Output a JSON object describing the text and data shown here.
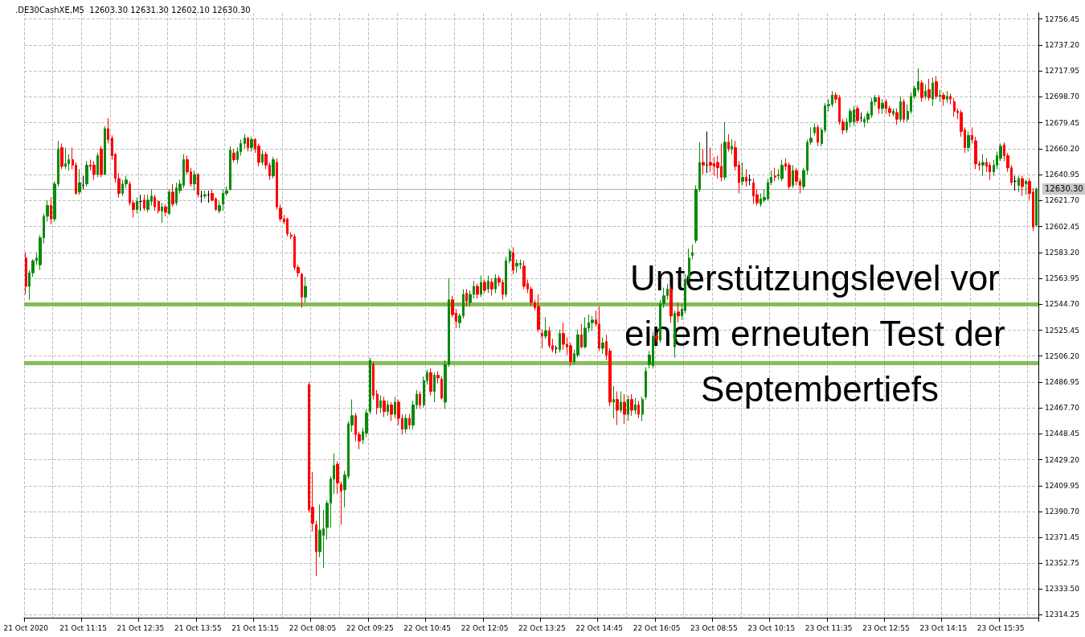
{
  "chart_data": {
    "type": "candlestick",
    "title": ".DE30CashXE,M5  12603.30 12631.30 12602.10 12630.30",
    "annotations": [
      "Unterstützungslevel vor einem erneuten Test der Septembertiefs"
    ],
    "colors": [
      "#ff0000",
      "#0a8a0a",
      "#0a8a0a",
      "#0a8a0a",
      "#0a8a0a",
      "#0a8a0a",
      "#0a8a0a",
      "#ff0000",
      "#0a8a0a",
      "#0a8a0a",
      "#ff0000",
      "#0a8a0a",
      "#0a8a0a",
      "#ff0000",
      "#ff0000",
      "#0a8a0a",
      "#000000",
      "#0a8a0a",
      "#ff0000",
      "#ff0000",
      "#0a8a0a",
      "#ff0000",
      "#0a8a0a",
      "#ff0000",
      "#ff0000",
      "#ff0000",
      "#ff0000",
      "#0a8a0a",
      "#0a8a0a",
      "#ff0000",
      "#ff0000",
      "#0a8a0a",
      "#000000",
      "#ff0000",
      "#0a8a0a",
      "#0a8a0a",
      "#ff0000",
      "#ff0000",
      "#0a8a0a",
      "#ff0000",
      "#0a8a0a",
      "#ff0000",
      "#0a8a0a",
      "#0a8a0a",
      "#0a8a0a",
      "#ff0000",
      "#ff0000",
      "#0a8a0a",
      "#ff0000",
      "#000000",
      "#0a8a0a",
      "#000000",
      "#ff0000",
      "#ff0000",
      "#0a8a0a",
      "#0a8a0a",
      "#0a8a0a",
      "#0a8a0a",
      "#ff0000",
      "#0a8a0a",
      "#0a8a0a",
      "#0a8a0a",
      "#ff0000",
      "#0a8a0a",
      "#ff0000",
      "#ff0000",
      "#0a8a0a",
      "#ff0000",
      "#ff0000",
      "#0a8a0a",
      "#ff0000",
      "#ff0000",
      "#ff0000",
      "#ff0000",
      "#ff0000",
      "#ff0000",
      "#ff0000",
      "#ff0000",
      "#0a8a0a",
      "#ff0000",
      "#ff0000",
      "#ff0000",
      "#0a8a0a",
      "#0a8a0a",
      "#0a8a0a",
      "#0a8a0a",
      "#0a8a0a",
      "#ff0000",
      "#ff0000",
      "#0a8a0a",
      "#0a8a0a",
      "#0a8a0a",
      "#ff0000",
      "#ff0000",
      "#0a8a0a",
      "#0a8a0a",
      "#0a8a0a",
      "#ff0000",
      "#ff0000",
      "#0a8a0a",
      "#ff0000",
      "#0a8a0a",
      "#ff0000",
      "#0a8a0a",
      "#ff0000",
      "#ff0000",
      "#0a8a0a",
      "#ff0000",
      "#0a8a0a",
      "#0a8a0a",
      "#ff0000",
      "#0a8a0a",
      "#0a8a0a",
      "#ff0000",
      "#0a8a0a",
      "#ff0000",
      "#ff0000",
      "#0a8a0a",
      "#0a8a0a",
      "#ff0000",
      "#ff0000",
      "#0a8a0a",
      "#0a8a0a",
      "#ff0000",
      "#0a8a0a",
      "#0a8a0a",
      "#ff0000",
      "#0a8a0a",
      "#ff0000",
      "#0a8a0a",
      "#ff0000",
      "#0a8a0a",
      "#ff0000",
      "#ff0000",
      "#0a8a0a",
      "#0a8a0a",
      "#ff0000",
      "#0a8a0a",
      "#0a8a0a",
      "#ff0000",
      "#ff0000",
      "#ff0000",
      "#ff0000",
      "#ff0000",
      "#ff0000",
      "#0a8a0a",
      "#ff0000",
      "#ff0000",
      "#000000",
      "#0a8a0a",
      "#ff0000",
      "#ff0000",
      "#ff0000",
      "#0a8a0a",
      "#0a8a0a",
      "#ff0000",
      "#0a8a0a",
      "#0a8a0a",
      "#0a8a0a",
      "#ff0000",
      "#ff0000",
      "#0a8a0a",
      "#ff0000",
      "#ff0000",
      "#0a8a0a",
      "#ff0000",
      "#0a8a0a",
      "#ff0000",
      "#0a8a0a",
      "#ff0000",
      "#0a8a0a",
      "#ff0000",
      "#0a8a0a",
      "#0a8a0a",
      "#0a8a0a",
      "#0a8a0a",
      "#ff0000",
      "#0a8a0a",
      "#0a8a0a",
      "#0a8a0a",
      "#ff0000",
      "#0a8a0a",
      "#ff0000",
      "#0a8a0a",
      "#0a8a0a",
      "#0a8a0a",
      "#0a8a0a",
      "#0a8a0a",
      "#0a8a0a",
      "#ff0000",
      "#000000",
      "#ff0000",
      "#ff0000",
      "#ff0000",
      "#ff0000",
      "#0a8a0a",
      "#ff0000",
      "#0a8a0a",
      "#ff0000",
      "#ff0000",
      "#0a8a0a",
      "#ff0000",
      "#000000",
      "#ff0000",
      "#ff0000",
      "#0a8a0a",
      "#0a8a0a",
      "#0a8a0a",
      "#0a8a0a",
      "#ff0000",
      "#0a8a0a",
      "#0a8a0a",
      "#ff0000",
      "#ff0000",
      "#0a8a0a",
      "#ff0000",
      "#ff0000",
      "#0a8a0a",
      "#0a8a0a",
      "#0a8a0a",
      "#0a8a0a",
      "#ff0000",
      "#0a8a0a",
      "#0a8a0a",
      "#0a8a0a",
      "#0a8a0a",
      "#ff0000",
      "#ff0000",
      "#ff0000",
      "#0a8a0a",
      "#0a8a0a",
      "#0a8a0a",
      "#ff0000",
      "#000000",
      "#0a8a0a",
      "#0a8a0a",
      "#0a8a0a",
      "#0a8a0a",
      "#ff0000",
      "#0a8a0a",
      "#ff0000",
      "#ff0000",
      "#0a8a0a",
      "#ff0000",
      "#0a8a0a",
      "#ff0000",
      "#0a8a0a",
      "#0a8a0a",
      "#0a8a0a",
      "#0a8a0a",
      "#ff0000",
      "#0a8a0a",
      "#ff0000",
      "#0a8a0a",
      "#ff0000",
      "#0a8a0a",
      "#ff0000",
      "#0a8a0a",
      "#ff0000",
      "#ff0000",
      "#ff0000",
      "#ff0000",
      "#ff0000",
      "#0a8a0a",
      "#ff0000",
      "#ff0000",
      "#ff0000",
      "#0a8a0a",
      "#ff0000",
      "#ff0000",
      "#0a8a0a",
      "#0a8a0a",
      "#0a8a0a",
      "#ff0000",
      "#ff0000",
      "#ff0000",
      "#000000",
      "#0a8a0a",
      "#ff0000",
      "#0a8a0a",
      "#ff0000",
      "#ff0000",
      "#0a8a0a"
    ],
    "grid": true,
    "ylim": [
      12312,
      12761
    ],
    "yticks": [
      {
        "value": 12756.45,
        "label": "12756.45"
      },
      {
        "value": 12737.2,
        "label": "12737.20"
      },
      {
        "value": 12717.95,
        "label": "12717.95"
      },
      {
        "value": 12698.7,
        "label": "12698.70"
      },
      {
        "value": 12679.45,
        "label": "12679.45"
      },
      {
        "value": 12660.2,
        "label": "12660.20"
      },
      {
        "value": 12640.95,
        "label": "12640.95"
      },
      {
        "value": 12621.7,
        "label": "12621.70"
      },
      {
        "value": 12602.45,
        "label": "12602.45"
      },
      {
        "value": 12583.2,
        "label": "12583.20"
      },
      {
        "value": 12563.95,
        "label": "12563.95"
      },
      {
        "value": 12544.7,
        "label": "12544.70"
      },
      {
        "value": 12525.45,
        "label": "12525.45"
      },
      {
        "value": 12506.2,
        "label": "12506.20"
      },
      {
        "value": 12486.95,
        "label": "12486.95"
      },
      {
        "value": 12467.7,
        "label": "12467.70"
      },
      {
        "value": 12448.45,
        "label": "12448.45"
      },
      {
        "value": 12429.2,
        "label": "12429.20"
      },
      {
        "value": 12409.95,
        "label": "12409.95"
      },
      {
        "value": 12390.7,
        "label": "12390.70"
      },
      {
        "value": 12371.45,
        "label": "12371.45"
      },
      {
        "value": 12352.75,
        "label": "12352.75"
      },
      {
        "value": 12333.5,
        "label": "12333.50"
      },
      {
        "value": 12314.25,
        "label": "12314.25"
      }
    ],
    "ref_lines": [
      {
        "axis": "y",
        "value": 12630.3,
        "label": "12630.30",
        "color": "#b4b4b4"
      },
      {
        "axis": "y",
        "value": 12545,
        "color": "#7ab648"
      },
      {
        "axis": "y",
        "value": 12501,
        "color": "#7ab648"
      }
    ],
    "categories": [
      "21 Oct 2020",
      null,
      null,
      null,
      null,
      null,
      null,
      null,
      null,
      null,
      null,
      null,
      null,
      null,
      null,
      null,
      "21 Oct 11:15",
      null,
      null,
      null,
      null,
      null,
      null,
      null,
      null,
      null,
      null,
      null,
      null,
      null,
      null,
      null,
      "21 Oct 12:35",
      null,
      null,
      null,
      null,
      null,
      null,
      null,
      null,
      null,
      null,
      null,
      null,
      null,
      null,
      null,
      "21 Oct 13:55",
      null,
      null,
      null,
      null,
      null,
      null,
      null,
      null,
      null,
      null,
      null,
      null,
      null,
      null,
      null,
      "21 Oct 15:15",
      null,
      null,
      null,
      null,
      null,
      null,
      null,
      null,
      null,
      null,
      null,
      null,
      null,
      null,
      null,
      "22 Oct 08:05",
      null,
      null,
      null,
      null,
      null,
      null,
      null,
      null,
      null,
      null,
      null,
      null,
      null,
      null,
      null,
      "22 Oct 09:25",
      null,
      null,
      null,
      null,
      null,
      null,
      null,
      null,
      null,
      null,
      null,
      null,
      null,
      null,
      null,
      "22 Oct 10:45",
      null,
      null,
      null,
      null,
      null,
      null,
      null,
      null,
      null,
      null,
      null,
      null,
      null,
      null,
      null,
      "22 Oct 12:05",
      null,
      null,
      null,
      null,
      null,
      null,
      null,
      null,
      null,
      null,
      null,
      null,
      null,
      null,
      null,
      "22 Oct 13:25",
      null,
      null,
      null,
      null,
      null,
      null,
      null,
      null,
      null,
      null,
      null,
      null,
      null,
      null,
      null,
      "22 Oct 14:45",
      null,
      null,
      null,
      null,
      null,
      null,
      null,
      null,
      null,
      null,
      null,
      null,
      null,
      null,
      null,
      "22 Oct 16:05",
      null,
      null,
      null,
      null,
      null,
      null,
      null,
      null,
      null,
      null,
      null,
      null,
      null,
      null,
      null,
      "23 Oct 08:55",
      null,
      null,
      null,
      null,
      null,
      null,
      null,
      null,
      null,
      null,
      null,
      null,
      null,
      null,
      null,
      "23 Oct 10:15",
      null,
      null,
      null,
      null,
      null,
      null,
      null,
      null,
      null,
      null,
      null,
      null,
      null,
      null,
      null,
      "23 Oct 11:35",
      null,
      null,
      null,
      null,
      null,
      null,
      null,
      null,
      null,
      null,
      null,
      null,
      null,
      null,
      null,
      "23 Oct 12:55",
      null,
      null,
      null,
      null,
      null,
      null,
      null,
      null,
      null,
      null,
      null,
      null,
      null,
      null,
      null,
      "23 Oct 14:15",
      null,
      null,
      null,
      null,
      null,
      null,
      null,
      null,
      null,
      null,
      null,
      null,
      null,
      null,
      null,
      "23 Oct 15:35",
      null,
      null,
      null,
      null,
      null,
      null,
      null,
      null,
      null,
      null
    ],
    "ohlc": [
      [
        12579,
        12583,
        12552,
        12558
      ],
      [
        12558,
        12570,
        12548,
        12568
      ],
      [
        12568,
        12578,
        12565,
        12577
      ],
      [
        12577,
        12583,
        12574,
        12579
      ],
      [
        12574,
        12596,
        12570,
        12594
      ],
      [
        12594,
        12612,
        12590,
        12610
      ],
      [
        12610,
        12622,
        12606,
        12618
      ],
      [
        12618,
        12624,
        12604,
        12608
      ],
      [
        12608,
        12636,
        12606,
        12634
      ],
      [
        12634,
        12666,
        12632,
        12660
      ],
      [
        12661,
        12664,
        12645,
        12647
      ],
      [
        12647,
        12661,
        12645,
        12649
      ],
      [
        12649,
        12656,
        12644,
        12652
      ],
      [
        12652,
        12661,
        12645,
        12648
      ],
      [
        12648,
        12650,
        12626,
        12627
      ],
      [
        12628,
        12645,
        12626,
        12635
      ],
      [
        12633,
        12640,
        12630,
        12633
      ],
      [
        12634,
        12651,
        12632,
        12648
      ],
      [
        12648,
        12652,
        12644,
        12647
      ],
      [
        12648,
        12651,
        12637,
        12641
      ],
      [
        12641,
        12657,
        12639,
        12655
      ],
      [
        12660,
        12662,
        12639,
        12641
      ],
      [
        12641,
        12677,
        12641,
        12675
      ],
      [
        12675,
        12683,
        12664,
        12667
      ],
      [
        12668,
        12670,
        12652,
        12655
      ],
      [
        12656,
        12657,
        12635,
        12638
      ],
      [
        12638,
        12642,
        12624,
        12627
      ],
      [
        12627,
        12637,
        12625,
        12634
      ],
      [
        12634,
        12640,
        12631,
        12637
      ],
      [
        12634,
        12636,
        12618,
        12620
      ],
      [
        12620,
        12622,
        12609,
        12615
      ],
      [
        12615,
        12624,
        12612,
        12621
      ],
      [
        12621,
        12626,
        12614,
        12621
      ],
      [
        12622,
        12626,
        12614,
        12616
      ],
      [
        12615,
        12626,
        12613,
        12622
      ],
      [
        12621,
        12630,
        12618,
        12625
      ],
      [
        12624,
        12626,
        12614,
        12617
      ],
      [
        12621,
        12622,
        12612,
        12614
      ],
      [
        12614,
        12620,
        12605,
        12617
      ],
      [
        12617,
        12619,
        12610,
        12613
      ],
      [
        12612,
        12630,
        12611,
        12628
      ],
      [
        12628,
        12634,
        12617,
        12619
      ],
      [
        12620,
        12635,
        12618,
        12631
      ],
      [
        12629,
        12637,
        12627,
        12634
      ],
      [
        12633,
        12656,
        12631,
        12652
      ],
      [
        12652,
        12655,
        12641,
        12643
      ],
      [
        12643,
        12646,
        12632,
        12634
      ],
      [
        12634,
        12644,
        12629,
        12641
      ],
      [
        12641,
        12642,
        12624,
        12626
      ],
      [
        12625,
        12629,
        12620,
        12625
      ],
      [
        12625,
        12629,
        12623,
        12626
      ],
      [
        12626,
        12629,
        12620,
        12626
      ],
      [
        12627,
        12630,
        12621,
        12622
      ],
      [
        12623,
        12624,
        12614,
        12615
      ],
      [
        12614,
        12621,
        12612,
        12618
      ],
      [
        12619,
        12630,
        12614,
        12627
      ],
      [
        12627,
        12632,
        12625,
        12629
      ],
      [
        12630,
        12662,
        12629,
        12659
      ],
      [
        12657,
        12660,
        12650,
        12652
      ],
      [
        12652,
        12661,
        12649,
        12658
      ],
      [
        12658,
        12667,
        12655,
        12664
      ],
      [
        12664,
        12671,
        12660,
        12668
      ],
      [
        12668,
        12669,
        12658,
        12661
      ],
      [
        12661,
        12669,
        12658,
        12667
      ],
      [
        12667,
        12668,
        12657,
        12660
      ],
      [
        12662,
        12664,
        12647,
        12650
      ],
      [
        12650,
        12659,
        12648,
        12656
      ],
      [
        12656,
        12658,
        12645,
        12648
      ],
      [
        12648,
        12650,
        12637,
        12640
      ],
      [
        12640,
        12654,
        12638,
        12652
      ],
      [
        12650,
        12653,
        12615,
        12617
      ],
      [
        12616,
        12619,
        12606,
        12608
      ],
      [
        12608,
        12611,
        12604,
        12606
      ],
      [
        12608,
        12609,
        12595,
        12597
      ],
      [
        12596,
        12598,
        12593,
        12595
      ],
      [
        12595,
        12597,
        12570,
        12572
      ],
      [
        12572,
        12574,
        12565,
        12568
      ],
      [
        12567,
        12568,
        12542,
        12550
      ],
      [
        12550,
        12565,
        12546,
        12558
      ],
      [
        12485,
        12487,
        12390,
        12392
      ],
      [
        12394,
        12420,
        12376,
        12382
      ],
      [
        12381,
        12384,
        12343,
        12361
      ],
      [
        12361,
        12396,
        12357,
        12377
      ],
      [
        12373,
        12392,
        12349,
        12378
      ],
      [
        12379,
        12399,
        12370,
        12397
      ],
      [
        12397,
        12417,
        12379,
        12415
      ],
      [
        12415,
        12434,
        12404,
        12425
      ],
      [
        12426,
        12428,
        12404,
        12412
      ],
      [
        12411,
        12413,
        12381,
        12406
      ],
      [
        12407,
        12421,
        12394,
        12418
      ],
      [
        12417,
        12458,
        12415,
        12456
      ],
      [
        12455,
        12474,
        12450,
        12462
      ],
      [
        12462,
        12464,
        12443,
        12448
      ],
      [
        12448,
        12450,
        12437,
        12443
      ],
      [
        12444,
        12453,
        12441,
        12450
      ],
      [
        12449,
        12467,
        12446,
        12464
      ],
      [
        12465,
        12505,
        12463,
        12503
      ],
      [
        12500,
        12502,
        12474,
        12477
      ],
      [
        12478,
        12481,
        12463,
        12468
      ],
      [
        12468,
        12477,
        12464,
        12473
      ],
      [
        12473,
        12476,
        12461,
        12465
      ],
      [
        12465,
        12473,
        12462,
        12470
      ],
      [
        12470,
        12472,
        12458,
        12463
      ],
      [
        12463,
        12476,
        12460,
        12472
      ],
      [
        12472,
        12474,
        12455,
        12460
      ],
      [
        12460,
        12463,
        12448,
        12452
      ],
      [
        12452,
        12463,
        12449,
        12460
      ],
      [
        12460,
        12463,
        12452,
        12455
      ],
      [
        12455,
        12473,
        12452,
        12470
      ],
      [
        12470,
        12481,
        12467,
        12478
      ],
      [
        12478,
        12480,
        12467,
        12470
      ],
      [
        12470,
        12491,
        12468,
        12488
      ],
      [
        12488,
        12496,
        12485,
        12494
      ],
      [
        12494,
        12497,
        12477,
        12480
      ],
      [
        12480,
        12494,
        12472,
        12492
      ],
      [
        12492,
        12495,
        12486,
        12490
      ],
      [
        12489,
        12491,
        12474,
        12475
      ],
      [
        12472,
        12503,
        12467,
        12500
      ],
      [
        12500,
        12564,
        12498,
        12548
      ],
      [
        12548,
        12551,
        12535,
        12537
      ],
      [
        12538,
        12541,
        12527,
        12532
      ],
      [
        12531,
        12538,
        12527,
        12536
      ],
      [
        12536,
        12556,
        12534,
        12552
      ],
      [
        12553,
        12556,
        12543,
        12547
      ],
      [
        12546,
        12555,
        12543,
        12552
      ],
      [
        12552,
        12562,
        12549,
        12558
      ],
      [
        12558,
        12560,
        12549,
        12552
      ],
      [
        12552,
        12566,
        12550,
        12561
      ],
      [
        12561,
        12563,
        12553,
        12555
      ],
      [
        12556,
        12566,
        12553,
        12562
      ],
      [
        12561,
        12564,
        12551,
        12556
      ],
      [
        12556,
        12567,
        12553,
        12564
      ],
      [
        12564,
        12566,
        12558,
        12561
      ],
      [
        12561,
        12563,
        12548,
        12552
      ],
      [
        12552,
        12580,
        12550,
        12577
      ],
      [
        12577,
        12586,
        12575,
        12584
      ],
      [
        12583,
        12587,
        12567,
        12570
      ],
      [
        12573,
        12578,
        12568,
        12575
      ],
      [
        12574,
        12578,
        12571,
        12575
      ],
      [
        12573,
        12577,
        12556,
        12558
      ],
      [
        12560,
        12563,
        12553,
        12556
      ],
      [
        12556,
        12558,
        12543,
        12546
      ],
      [
        12546,
        12548,
        12540,
        12542
      ],
      [
        12543,
        12552,
        12524,
        12526
      ],
      [
        12523,
        12526,
        12512,
        12521
      ],
      [
        12521,
        12535,
        12519,
        12525
      ],
      [
        12525,
        12528,
        12512,
        12514
      ],
      [
        12514,
        12519,
        12509,
        12511
      ],
      [
        12512,
        12514,
        12508,
        12512
      ],
      [
        12511,
        12526,
        12509,
        12523
      ],
      [
        12523,
        12531,
        12511,
        12515
      ],
      [
        12515,
        12520,
        12507,
        12513
      ],
      [
        12514,
        12516,
        12499,
        12502
      ],
      [
        12502,
        12511,
        12500,
        12508
      ],
      [
        12507,
        12526,
        12505,
        12522
      ],
      [
        12522,
        12530,
        12512,
        12513
      ],
      [
        12513,
        12535,
        12512,
        12527
      ],
      [
        12527,
        12537,
        12524,
        12531
      ],
      [
        12531,
        12536,
        12525,
        12533
      ],
      [
        12533,
        12540,
        12528,
        12530
      ],
      [
        12530,
        12543,
        12510,
        12512
      ],
      [
        12512,
        12520,
        12508,
        12516
      ],
      [
        12517,
        12522,
        12503,
        12507
      ],
      [
        12510,
        12512,
        12469,
        12472
      ],
      [
        12472,
        12484,
        12460,
        12474
      ],
      [
        12474,
        12480,
        12455,
        12466
      ],
      [
        12466,
        12480,
        12464,
        12472
      ],
      [
        12472,
        12478,
        12456,
        12463
      ],
      [
        12463,
        12477,
        12458,
        12474
      ],
      [
        12474,
        12478,
        12462,
        12466
      ],
      [
        12466,
        12475,
        12463,
        12470
      ],
      [
        12470,
        12473,
        12460,
        12463
      ],
      [
        12463,
        12476,
        12458,
        12474
      ],
      [
        12476,
        12498,
        12474,
        12495
      ],
      [
        12500,
        12510,
        12497,
        12507
      ],
      [
        12499,
        12524,
        12497,
        12521
      ],
      [
        12521,
        12524,
        12516,
        12519
      ],
      [
        12518,
        12548,
        12516,
        12545
      ],
      [
        12545,
        12557,
        12542,
        12551
      ],
      [
        12551,
        12560,
        12548,
        12556
      ],
      [
        12556,
        12558,
        12531,
        12536
      ],
      [
        12513,
        12540,
        12505,
        12538
      ],
      [
        12539,
        12546,
        12531,
        12536
      ],
      [
        12536,
        12545,
        12533,
        12541
      ],
      [
        12540,
        12567,
        12538,
        12563
      ],
      [
        12564,
        12586,
        12562,
        12579
      ],
      [
        12581,
        12589,
        12578,
        12583
      ],
      [
        12592,
        12633,
        12590,
        12630
      ],
      [
        12630,
        12665,
        12628,
        12650
      ],
      [
        12650,
        12660,
        12641,
        12648
      ],
      [
        12648,
        12673,
        12642,
        12648
      ],
      [
        12650,
        12661,
        12643,
        12648
      ],
      [
        12649,
        12654,
        12640,
        12647
      ],
      [
        12650,
        12655,
        12638,
        12646
      ],
      [
        12647,
        12664,
        12636,
        12639
      ],
      [
        12639,
        12680,
        12637,
        12665
      ],
      [
        12665,
        12671,
        12658,
        12660
      ],
      [
        12660,
        12667,
        12656,
        12662
      ],
      [
        12661,
        12666,
        12644,
        12647
      ],
      [
        12648,
        12651,
        12627,
        12635
      ],
      [
        12636,
        12650,
        12633,
        12639
      ],
      [
        12639,
        12645,
        12632,
        12636
      ],
      [
        12637,
        12641,
        12633,
        12637
      ],
      [
        12635,
        12638,
        12619,
        12625
      ],
      [
        12626,
        12630,
        12618,
        12620
      ],
      [
        12619,
        12627,
        12617,
        12623
      ],
      [
        12622,
        12630,
        12620,
        12624
      ],
      [
        12623,
        12638,
        12622,
        12635
      ],
      [
        12635,
        12644,
        12633,
        12639
      ],
      [
        12640,
        12646,
        12636,
        12639
      ],
      [
        12640,
        12645,
        12637,
        12641
      ],
      [
        12638,
        12652,
        12636,
        12648
      ],
      [
        12649,
        12653,
        12644,
        12647
      ],
      [
        12648,
        12650,
        12630,
        12632
      ],
      [
        12633,
        12648,
        12631,
        12644
      ],
      [
        12644,
        12646,
        12633,
        12636
      ],
      [
        12636,
        12638,
        12627,
        12633
      ],
      [
        12632,
        12646,
        12630,
        12644
      ],
      [
        12644,
        12667,
        12641,
        12665
      ],
      [
        12665,
        12676,
        12663,
        12668
      ],
      [
        12672,
        12679,
        12670,
        12676
      ],
      [
        12676,
        12678,
        12662,
        12665
      ],
      [
        12664,
        12676,
        12662,
        12674
      ],
      [
        12674,
        12694,
        12672,
        12692
      ],
      [
        12692,
        12697,
        12688,
        12693
      ],
      [
        12693,
        12703,
        12691,
        12700
      ],
      [
        12700,
        12702,
        12694,
        12697
      ],
      [
        12698,
        12700,
        12678,
        12680
      ],
      [
        12680,
        12682,
        12671,
        12674
      ],
      [
        12674,
        12683,
        12672,
        12680
      ],
      [
        12680,
        12690,
        12676,
        12688
      ],
      [
        12680,
        12692,
        12677,
        12689
      ],
      [
        12690,
        12692,
        12679,
        12681
      ],
      [
        12683,
        12687,
        12680,
        12683
      ],
      [
        12680,
        12684,
        12676,
        12682
      ],
      [
        12682,
        12688,
        12679,
        12686
      ],
      [
        12685,
        12698,
        12683,
        12695
      ],
      [
        12695,
        12700,
        12692,
        12698
      ],
      [
        12698,
        12700,
        12686,
        12690
      ],
      [
        12690,
        12697,
        12686,
        12694
      ],
      [
        12695,
        12697,
        12686,
        12690
      ],
      [
        12690,
        12692,
        12684,
        12687
      ],
      [
        12686,
        12690,
        12684,
        12688
      ],
      [
        12687,
        12690,
        12678,
        12682
      ],
      [
        12682,
        12699,
        12680,
        12695
      ],
      [
        12695,
        12697,
        12680,
        12682
      ],
      [
        12682,
        12693,
        12680,
        12688
      ],
      [
        12688,
        12702,
        12686,
        12699
      ],
      [
        12699,
        12707,
        12697,
        12705
      ],
      [
        12704,
        12720,
        12702,
        12710
      ],
      [
        12709,
        12711,
        12695,
        12698
      ],
      [
        12699,
        12708,
        12697,
        12703
      ],
      [
        12704,
        12712,
        12696,
        12698
      ],
      [
        12697,
        12713,
        12692,
        12709
      ],
      [
        12710,
        12714,
        12697,
        12699
      ],
      [
        12699,
        12704,
        12695,
        12700
      ],
      [
        12700,
        12702,
        12692,
        12697
      ],
      [
        12697,
        12703,
        12694,
        12699
      ],
      [
        12699,
        12701,
        12693,
        12697
      ],
      [
        12695,
        12698,
        12684,
        12688
      ],
      [
        12688,
        12690,
        12682,
        12687
      ],
      [
        12687,
        12689,
        12669,
        12673
      ],
      [
        12674,
        12676,
        12657,
        12661
      ],
      [
        12661,
        12673,
        12658,
        12670
      ],
      [
        12670,
        12676,
        12664,
        12667
      ],
      [
        12666,
        12669,
        12645,
        12649
      ],
      [
        12649,
        12651,
        12644,
        12648
      ],
      [
        12648,
        12656,
        12640,
        12650
      ],
      [
        12650,
        12653,
        12643,
        12647
      ],
      [
        12648,
        12650,
        12637,
        12643
      ],
      [
        12643,
        12652,
        12640,
        12648
      ],
      [
        12648,
        12658,
        12645,
        12655
      ],
      [
        12653,
        12664,
        12651,
        12662
      ],
      [
        12663,
        12665,
        12651,
        12655
      ],
      [
        12655,
        12657,
        12643,
        12646
      ],
      [
        12646,
        12648,
        12633,
        12635
      ],
      [
        12636,
        12640,
        12629,
        12636
      ],
      [
        12633,
        12640,
        12628,
        12638
      ],
      [
        12638,
        12640,
        12625,
        12632
      ],
      [
        12634,
        12637,
        12626,
        12636
      ],
      [
        12636,
        12638,
        12622,
        12627
      ],
      [
        12628,
        12631,
        12599,
        12602
      ],
      [
        12603.3,
        12631.3,
        12602.1,
        12630.3
      ]
    ]
  }
}
